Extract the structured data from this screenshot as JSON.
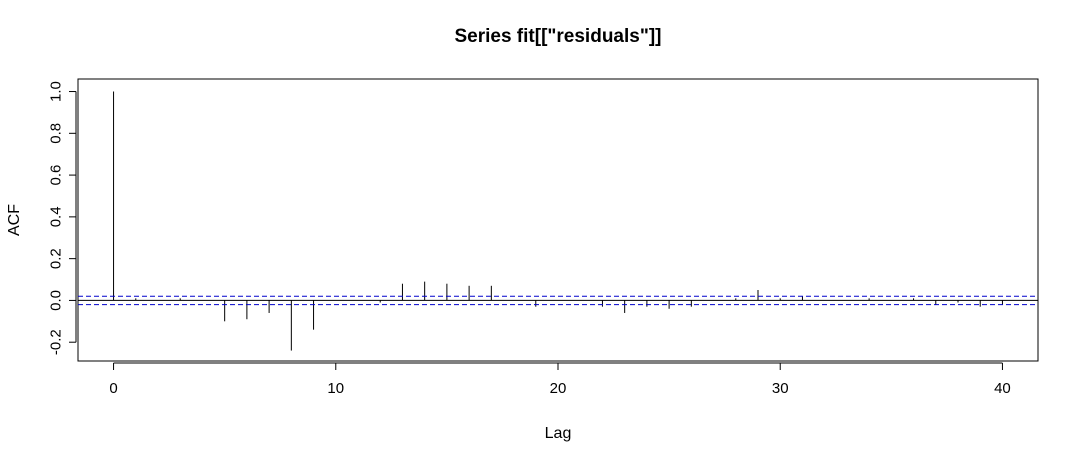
{
  "chart_data": {
    "type": "bar",
    "title": "Series  fit[[\"residuals\"]]",
    "xlabel": "Lag",
    "ylabel": "ACF",
    "xlim": [
      -1.6,
      41.6
    ],
    "ylim": [
      -0.29,
      1.06
    ],
    "xticks": [
      0,
      10,
      20,
      30,
      40
    ],
    "xtick_labels": [
      "0",
      "10",
      "20",
      "30",
      "40"
    ],
    "yticks": [
      -0.2,
      0.0,
      0.2,
      0.4,
      0.6,
      0.8,
      1.0
    ],
    "ytick_labels": [
      "-0.2",
      "0.0",
      "0.2",
      "0.4",
      "0.6",
      "0.8",
      "1.0"
    ],
    "confidence_bound": 0.02,
    "colors": {
      "spike": "#000000",
      "ci_line": "#0000cc",
      "zero_line": "#000000"
    },
    "lags": [
      0,
      1,
      2,
      3,
      4,
      5,
      6,
      7,
      8,
      9,
      10,
      11,
      12,
      13,
      14,
      15,
      16,
      17,
      18,
      19,
      20,
      21,
      22,
      23,
      24,
      25,
      26,
      27,
      28,
      29,
      30,
      31,
      32,
      33,
      34,
      35,
      36,
      37,
      38,
      39,
      40
    ],
    "acf": [
      1.0,
      0.01,
      0.0,
      0.01,
      0.0,
      -0.1,
      -0.09,
      -0.06,
      -0.24,
      -0.14,
      0.0,
      0.0,
      -0.01,
      0.08,
      0.09,
      0.08,
      0.07,
      0.07,
      0.0,
      -0.03,
      0.0,
      0.0,
      -0.03,
      -0.06,
      -0.03,
      -0.04,
      -0.03,
      0.0,
      0.01,
      0.05,
      0.01,
      0.02,
      0.0,
      0.0,
      0.01,
      0.0,
      0.01,
      -0.02,
      -0.01,
      -0.03,
      -0.02
    ]
  }
}
